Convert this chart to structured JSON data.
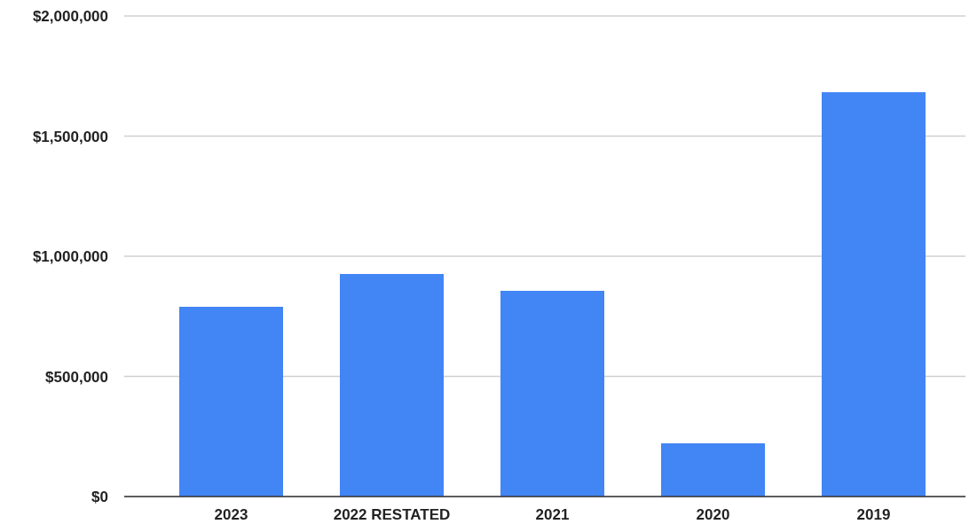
{
  "chart_data": {
    "type": "bar",
    "categories": [
      "2023",
      "2022 RESTATED",
      "2021",
      "2020",
      "2019"
    ],
    "values": [
      790000,
      926000,
      856000,
      221000,
      1683000
    ],
    "color": "#4285f4",
    "ylim": [
      0,
      2000000
    ],
    "yticks": [
      {
        "value": 0,
        "label": "$0"
      },
      {
        "value": 500000,
        "label": "$500,000"
      },
      {
        "value": 1000000,
        "label": "$1,000,000"
      },
      {
        "value": 1500000,
        "label": "$1,500,000"
      },
      {
        "value": 2000000,
        "label": "$2,000,000"
      }
    ],
    "grid": "y"
  }
}
